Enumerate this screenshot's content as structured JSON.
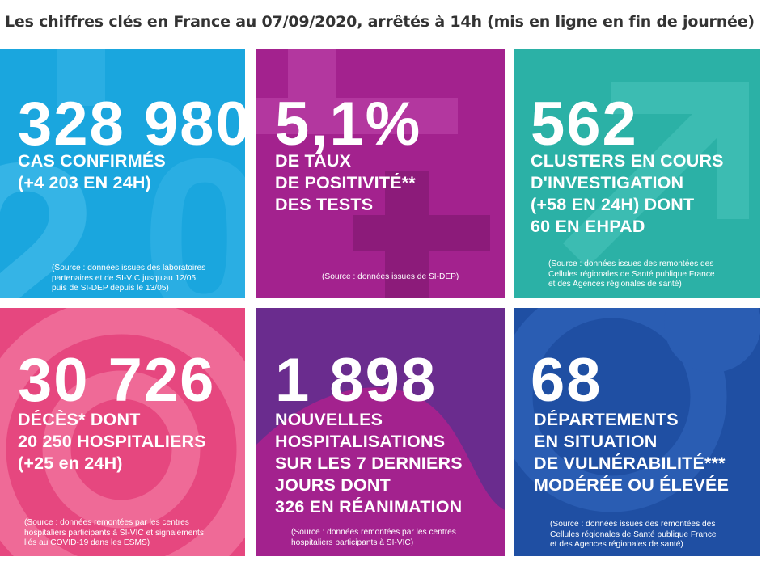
{
  "header": {
    "title": "Les chiffres clés en France au 07/09/2020, arrêtés à 14h (mis en ligne en fin de journée)"
  },
  "tiles": [
    {
      "value": "328 980",
      "lines": [
        "CAS CONFIRMÉS",
        "(+4 203 EN 24H)"
      ],
      "source": [
        "(Source : données issues des laboratoires",
        "partenaires et de SI-VIC jusqu'au 12/05",
        "puis de SI-DEP depuis le 13/05)"
      ],
      "color": "#1aa6de"
    },
    {
      "value": "5,1%",
      "lines": [
        "DE TAUX",
        "DE POSITIVITÉ**",
        "DES TESTS"
      ],
      "source": [
        "(Source : données issues de SI-DEP)"
      ],
      "color": "#a3228e"
    },
    {
      "value": "562",
      "lines": [
        "CLUSTERS EN COURS",
        "D'INVESTIGATION",
        "(+58 EN 24H) DONT",
        "60 EN EHPAD"
      ],
      "source": [
        "(Source : données issues des remontées des",
        "Cellules régionales de Santé publique France",
        "et des Agences régionales de santé)"
      ],
      "color": "#2bb1a6"
    },
    {
      "value": "30 726",
      "lines": [
        "DÉCÈS* DONT",
        "20 250 HOSPITALIERS",
        "(+25 en 24H)"
      ],
      "source": [
        "(Source : données remontées par les centres",
        "hospitaliers participants à SI-VIC et signalements",
        "liés au COVID-19 dans les ESMS)"
      ],
      "color": "#e6477f"
    },
    {
      "value": "1 898",
      "lines": [
        "NOUVELLES",
        "HOSPITALISATIONS",
        "SUR LES 7 DERNIERS",
        "JOURS DONT",
        "326 EN RÉANIMATION"
      ],
      "source": [
        "(Source : données remontées par les centres",
        "hospitaliers participants à SI-VIC)"
      ],
      "color": "#6a2c8e"
    },
    {
      "value": "68",
      "lines": [
        "DÉPARTEMENTS",
        "EN SITUATION",
        "DE VULNÉRABILITÉ***",
        "MODÉRÉE OU ÉLEVÉE"
      ],
      "source": [
        "(Source : données issues des remontées des",
        "Cellules régionales de Santé publique France",
        "et des Agences régionales de santé)"
      ],
      "color": "#1f4fa3"
    }
  ]
}
